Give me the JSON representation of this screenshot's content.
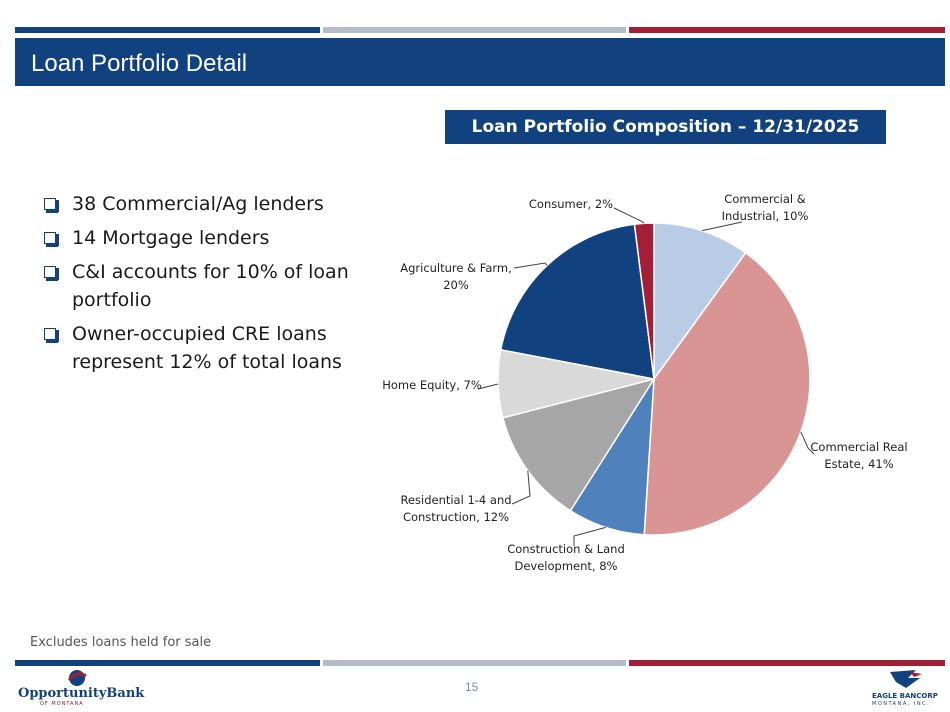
{
  "header": {
    "title": "Loan Portfolio Detail"
  },
  "chart_title": "Loan Portfolio Composition – 12/31/2025",
  "bullets": [
    "38 Commercial/Ag lenders",
    "14 Mortgage lenders",
    "C&I accounts for 10% of loan portfolio",
    "Owner-occupied CRE loans represent 12% of total loans"
  ],
  "footnote": "Excludes loans held for sale",
  "page_number": "15",
  "logos": {
    "left_name": "OpportunityBank",
    "left_sub": "OF MONTANA",
    "right_name": "EAGLE BANCORP",
    "right_sub": "MONTANA, INC."
  },
  "colors": {
    "brand_blue": "#12417f",
    "brand_red": "#a21f35",
    "stripe_gray": "#b4bccb"
  },
  "chart_data": {
    "type": "pie",
    "title": "Loan Portfolio Composition – 12/31/2025",
    "slices": [
      {
        "label": "Commercial & Industrial",
        "value": 10,
        "label_lines": [
          "Commercial &",
          "Industrial, 10%"
        ],
        "color": "#b9cce6"
      },
      {
        "label": "Commercial Real Estate",
        "value": 41,
        "label_lines": [
          "Commercial Real",
          "Estate, 41%"
        ],
        "color": "#d99594"
      },
      {
        "label": "Construction & Land Development",
        "value": 8,
        "label_lines": [
          "Construction & Land",
          "Development, 8%"
        ],
        "color": "#4f81bd"
      },
      {
        "label": "Residential 1-4 and Construction",
        "value": 12,
        "label_lines": [
          "Residential 1-4 and",
          "Construction, 12%"
        ],
        "color": "#a6a6a6"
      },
      {
        "label": "Home Equity",
        "value": 7,
        "label_lines": [
          "Home Equity, 7%"
        ],
        "color": "#d9d9d9"
      },
      {
        "label": "Agriculture & Farm",
        "value": 20,
        "label_lines": [
          "Agriculture & Farm,",
          "20%"
        ],
        "color": "#12417f"
      },
      {
        "label": "Consumer",
        "value": 2,
        "label_lines": [
          "Consumer, 2%"
        ],
        "color": "#a21f35"
      }
    ]
  }
}
